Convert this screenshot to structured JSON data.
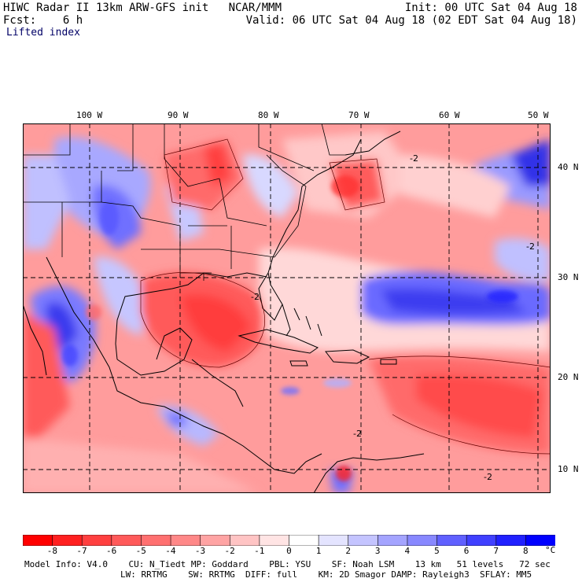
{
  "header": {
    "left_line1": "HIWC Radar II 13km ARW-GFS init   NCAR/MMM",
    "left_line2": "Fcst:    6 h",
    "field_name": "Lifted index",
    "init_time": "Init: 00 UTC Sat 04 Aug 18",
    "valid_time": "Valid: 06 UTC Sat 04 Aug 18 (02 EDT Sat 04 Aug 18)"
  },
  "map": {
    "lon_labels": [
      "100 W",
      "90 W",
      "80 W",
      "70 W",
      "60 W",
      "50 W"
    ],
    "lat_labels": [
      "40 N",
      "30 N",
      "20 N",
      "10 N"
    ],
    "contour_labels": [
      "-2",
      "-2",
      "-2",
      "-2",
      "-2"
    ]
  },
  "colorbar": {
    "labels": [
      "-8",
      "-7",
      "-6",
      "-5",
      "-4",
      "-3",
      "-2",
      "-1",
      "0",
      "1",
      "2",
      "3",
      "4",
      "5",
      "6",
      "7",
      "8"
    ],
    "unit": "°C",
    "colors": [
      "#ff0000",
      "#ff2020",
      "#ff4040",
      "#ff5a5a",
      "#ff7070",
      "#ff8888",
      "#ffa4a4",
      "#ffc4c4",
      "#ffe4e4",
      "#ffffff",
      "#e4e4ff",
      "#c4c4ff",
      "#a4a4ff",
      "#8888ff",
      "#6060ff",
      "#4040ff",
      "#2020ff",
      "#0000ff"
    ]
  },
  "footer": {
    "line1": "Model Info: V4.0    CU: N_Tiedt MP: Goddard    PBL: YSU    SF: Noah LSM    13 km   51 levels   72 sec",
    "line2": "LW: RRTMG    SW: RRTMG  DIFF: full    KM: 2D Smagor DAMP: Rayleigh3  SFLAY: MM5"
  }
}
